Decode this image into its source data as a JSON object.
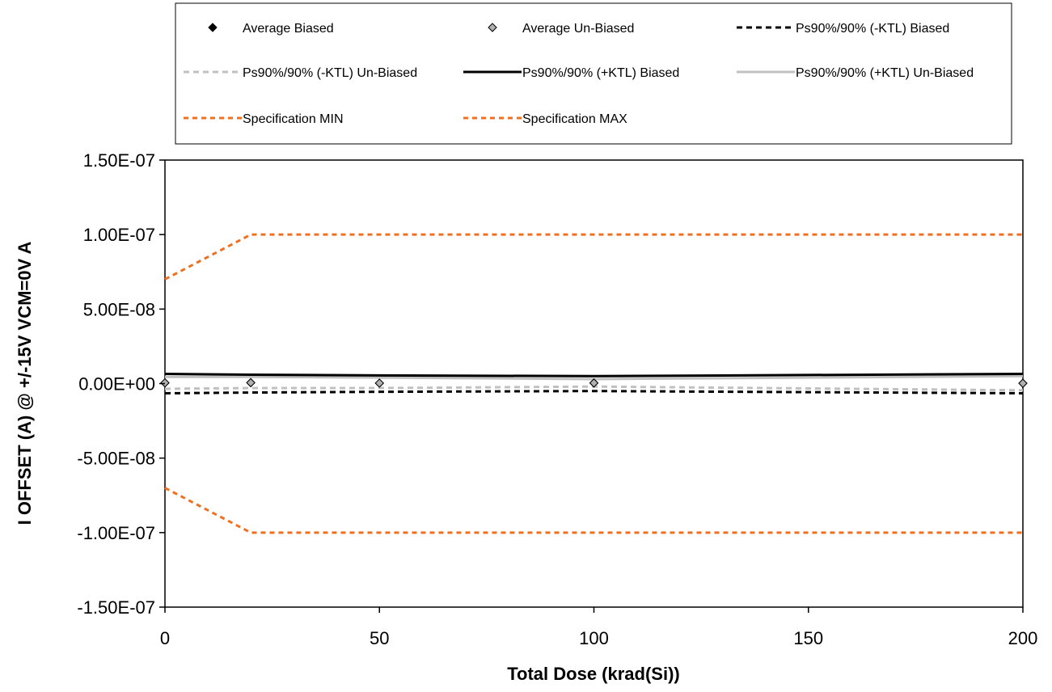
{
  "chart_data": {
    "type": "line",
    "xlabel": "Total Dose (krad(Si))",
    "ylabel": "I OFFSET (A) @ +/-15V VCM=0V A",
    "xlim": [
      0,
      200
    ],
    "ylim": [
      -1.5e-07,
      1.5e-07
    ],
    "x_ticks": [
      0,
      50,
      100,
      150,
      200
    ],
    "x_tick_labels": [
      "0",
      "50",
      "100",
      "150",
      "200"
    ],
    "y_ticks": [
      1.5e-07,
      1e-07,
      5e-08,
      0,
      -5e-08,
      -1e-07,
      -1.5e-07
    ],
    "y_tick_labels": [
      "1.50E-07",
      "1.00E-07",
      "5.00E-08",
      "0.00E+00",
      "-5.00E-08",
      "-1.00E-07",
      "-1.50E-07"
    ],
    "grid": false,
    "legend_position": "top",
    "colors": {
      "black": "#000000",
      "gray": "#c0c0c0",
      "orange": "#f07020",
      "marker_gray": "#b0b0b0"
    },
    "series": [
      {
        "name": "Average Biased",
        "style": "marker-diamond",
        "color": "#000000",
        "x": [
          0,
          20,
          50,
          100,
          200
        ],
        "y": [
          5e-10,
          6e-10,
          3e-10,
          4e-10,
          2e-10
        ]
      },
      {
        "name": "Average Un-Biased",
        "style": "marker-diamond-open",
        "color": "#b0b0b0",
        "x": [
          0,
          20,
          50,
          100,
          200
        ],
        "y": [
          5e-10,
          6e-10,
          3e-10,
          4e-10,
          2e-10
        ]
      },
      {
        "name": "Ps90%/90% (-KTL) Biased",
        "style": "dashed",
        "color": "#000000",
        "x": [
          0,
          20,
          50,
          100,
          200
        ],
        "y": [
          -6.5e-09,
          -6e-09,
          -5.5e-09,
          -5e-09,
          -6.5e-09
        ]
      },
      {
        "name": "Ps90%/90% (-KTL) Un-Biased",
        "style": "dashed",
        "color": "#c0c0c0",
        "x": [
          0,
          20,
          50,
          100,
          200
        ],
        "y": [
          -3.5e-09,
          -3e-09,
          -3e-09,
          -2e-09,
          -4.5e-09
        ]
      },
      {
        "name": "Ps90%/90% (+KTL) Biased",
        "style": "solid",
        "color": "#000000",
        "x": [
          0,
          20,
          50,
          100,
          200
        ],
        "y": [
          6.5e-09,
          6e-09,
          5.5e-09,
          5e-09,
          6.5e-09
        ]
      },
      {
        "name": "Ps90%/90% (+KTL) Un-Biased",
        "style": "solid",
        "color": "#c0c0c0",
        "x": [
          0,
          20,
          50,
          100,
          200
        ],
        "y": [
          4.5e-09,
          4.5e-09,
          4e-09,
          3e-09,
          5e-09
        ]
      },
      {
        "name": "Specification MIN",
        "style": "dashed",
        "color": "#f07020",
        "x": [
          0,
          20,
          50,
          100,
          200
        ],
        "y": [
          -7e-08,
          -1e-07,
          -1e-07,
          -1e-07,
          -1e-07
        ]
      },
      {
        "name": "Specification MAX",
        "style": "dashed",
        "color": "#f07020",
        "x": [
          0,
          20,
          50,
          100,
          200
        ],
        "y": [
          7e-08,
          1e-07,
          1e-07,
          1e-07,
          1e-07
        ]
      }
    ]
  }
}
